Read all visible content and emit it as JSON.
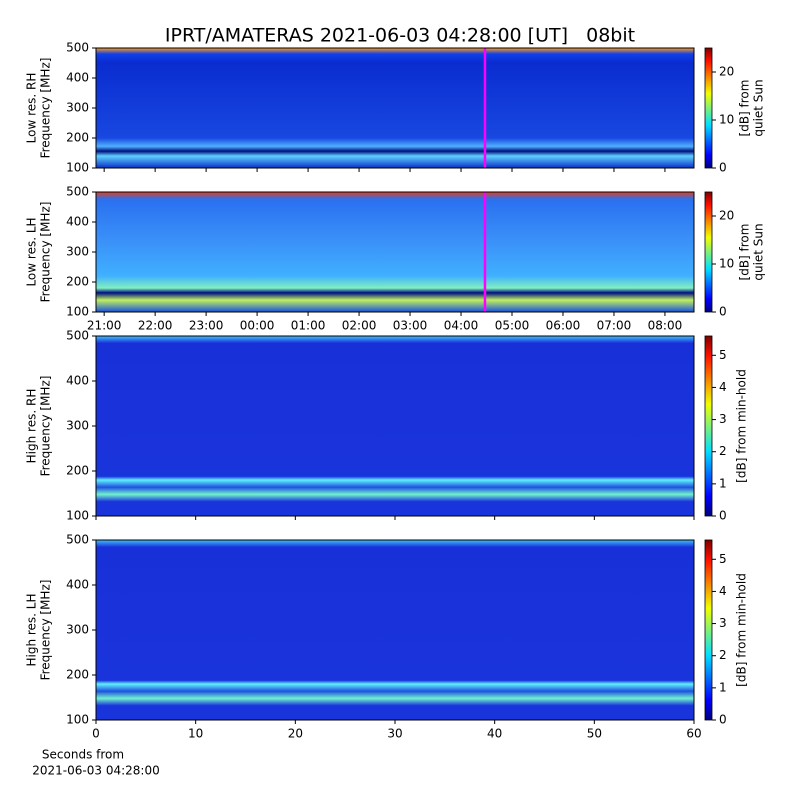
{
  "chart_data": [
    {
      "type": "heatmap",
      "title": "IPRT/AMATERAS 2021-06-03 04:28:00 [UT]   08bit",
      "ylabel": [
        "Low res. RH",
        "Frequency [MHz]"
      ],
      "ylim": [
        100,
        500
      ],
      "yticks": [
        100,
        200,
        300,
        400,
        500
      ],
      "xlim": [
        20.84,
        32.57
      ],
      "xticks": [
        21,
        22,
        23,
        24,
        25,
        26,
        27,
        28,
        29,
        30,
        31,
        32
      ],
      "xticklabels": false,
      "vline": {
        "value": 28.47,
        "color": "#ff00ff"
      },
      "colorbar": {
        "label": [
          "[dB] from",
          "quiet Sun"
        ],
        "lim": [
          0,
          25
        ],
        "ticks": [
          0,
          10,
          20
        ]
      }
    },
    {
      "type": "heatmap",
      "ylabel": [
        "Low res. LH",
        "Frequency [MHz]"
      ],
      "ylim": [
        100,
        500
      ],
      "yticks": [
        100,
        200,
        300,
        400,
        500
      ],
      "xlim": [
        20.84,
        32.57
      ],
      "xticks": [
        {
          "value": 21,
          "label": "21:00"
        },
        {
          "value": 22,
          "label": "22:00"
        },
        {
          "value": 23,
          "label": "23:00"
        },
        {
          "value": 24,
          "label": "00:00"
        },
        {
          "value": 25,
          "label": "01:00"
        },
        {
          "value": 26,
          "label": "02:00"
        },
        {
          "value": 27,
          "label": "03:00"
        },
        {
          "value": 28,
          "label": "04:00"
        },
        {
          "value": 29,
          "label": "05:00"
        },
        {
          "value": 30,
          "label": "06:00"
        },
        {
          "value": 31,
          "label": "07:00"
        },
        {
          "value": 32,
          "label": "08:00"
        }
      ],
      "xticklabels": true,
      "vline": {
        "value": 28.47,
        "color": "#ff00ff"
      },
      "colorbar": {
        "label": [
          "[dB] from",
          "quiet Sun"
        ],
        "lim": [
          0,
          25
        ],
        "ticks": [
          0,
          10,
          20
        ]
      }
    },
    {
      "type": "heatmap",
      "ylabel": [
        "High res. RH",
        "Frequency [MHz]"
      ],
      "ylim": [
        100,
        500
      ],
      "yticks": [
        100,
        200,
        300,
        400,
        500
      ],
      "xlim": [
        0,
        60
      ],
      "xticks": [
        0,
        10,
        20,
        30,
        40,
        50,
        60
      ],
      "xticklabels": false,
      "colorbar": {
        "label": [
          "[dB] from min-hold"
        ],
        "lim": [
          0,
          5.6
        ],
        "ticks": [
          0,
          1,
          2,
          3,
          4,
          5
        ]
      }
    },
    {
      "type": "heatmap",
      "ylabel": [
        "High res. LH",
        "Frequency [MHz]"
      ],
      "ylim": [
        100,
        500
      ],
      "yticks": [
        100,
        200,
        300,
        400,
        500
      ],
      "xlim": [
        0,
        60
      ],
      "xticks": [
        0,
        10,
        20,
        30,
        40,
        50,
        60
      ],
      "xticklabels": true,
      "xlabel": [
        "Seconds from",
        "2021-06-03 04:28:00"
      ],
      "colorbar": {
        "label": [
          "[dB] from min-hold"
        ],
        "lim": [
          0,
          5.6
        ],
        "ticks": [
          0,
          1,
          2,
          3,
          4,
          5
        ]
      }
    }
  ]
}
